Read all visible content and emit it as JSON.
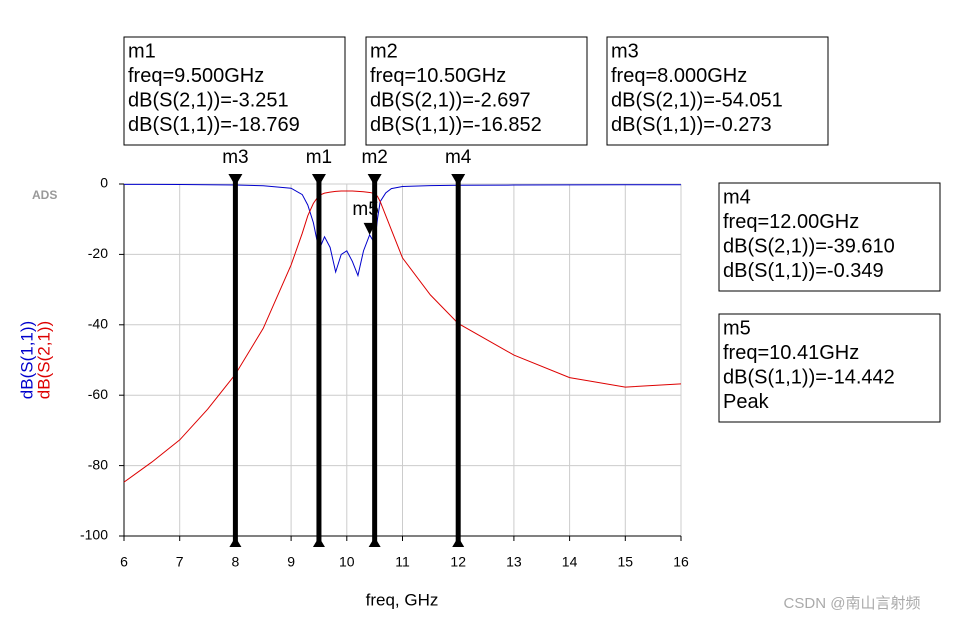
{
  "chart_data": {
    "type": "line",
    "brand": "ADS",
    "xlabel": "freq, GHz",
    "watermark": "CSDN @南山言射频",
    "x": [
      6,
      6.5,
      7,
      7.5,
      8,
      8.5,
      9,
      9.2,
      9.3,
      9.4,
      9.5,
      9.6,
      9.7,
      9.8,
      9.9,
      10,
      10.1,
      10.2,
      10.3,
      10.41,
      10.5,
      10.55,
      10.6,
      10.7,
      10.8,
      11,
      11.5,
      12,
      13,
      14,
      15,
      16
    ],
    "series": [
      {
        "name": "dB(S(1,1))",
        "color": "#0000cc",
        "values": [
          -0.1,
          -0.1,
          -0.15,
          -0.2,
          -0.273,
          -0.5,
          -1.2,
          -3,
          -6,
          -11,
          -18.769,
          -15,
          -18,
          -25,
          -20,
          -19,
          -22,
          -26,
          -19,
          -14.442,
          -16.852,
          -10,
          -5,
          -2.5,
          -1.3,
          -0.7,
          -0.45,
          -0.349,
          -0.3,
          -0.25,
          -0.2,
          -0.2
        ]
      },
      {
        "name": "dB(S(2,1))",
        "color": "#dd0000",
        "values": [
          -84.7,
          -79,
          -72.7,
          -64,
          -54.051,
          -41,
          -23,
          -14,
          -9,
          -5.5,
          -3.251,
          -2.6,
          -2.3,
          -2.1,
          -2.0,
          -2.0,
          -2.0,
          -2.1,
          -2.2,
          -2.4,
          -2.697,
          -3.5,
          -5,
          -9,
          -13,
          -21,
          -31.5,
          -39.61,
          -48.6,
          -55,
          -57.7,
          -56.8
        ]
      }
    ],
    "xlim": [
      6,
      16
    ],
    "xticks": [
      6,
      7,
      8,
      9,
      10,
      11,
      12,
      13,
      14,
      15,
      16
    ],
    "ylim": [
      -100,
      0
    ],
    "yticks": [
      0,
      -20,
      -40,
      -60,
      -80,
      -100
    ],
    "grid": true,
    "markers": [
      {
        "name": "m1",
        "freq": 9.5,
        "lines": [
          "m1",
          "freq=9.500GHz",
          "dB(S(2,1))=-3.251",
          "dB(S(1,1))=-18.769"
        ]
      },
      {
        "name": "m2",
        "freq": 10.5,
        "lines": [
          "m2",
          "freq=10.50GHz",
          "dB(S(2,1))=-2.697",
          "dB(S(1,1))=-16.852"
        ]
      },
      {
        "name": "m3",
        "freq": 8,
        "lines": [
          "m3",
          "freq=8.000GHz",
          "dB(S(2,1))=-54.051",
          "dB(S(1,1))=-0.273"
        ]
      },
      {
        "name": "m4",
        "freq": 12,
        "lines": [
          "m4",
          "freq=12.00GHz",
          "dB(S(2,1))=-39.610",
          "dB(S(1,1))=-0.349"
        ]
      },
      {
        "name": "m5",
        "freq": 10.41,
        "value": -14.442,
        "lines": [
          "m5",
          "freq=10.41GHz",
          "dB(S(1,1))=-14.442",
          "Peak"
        ]
      }
    ]
  }
}
